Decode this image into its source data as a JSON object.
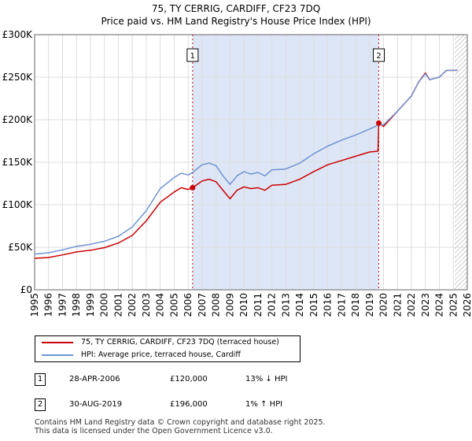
{
  "chart_data": {
    "type": "line",
    "title": "75, TY CERRIG, CARDIFF, CF23 7DQ",
    "subtitle": "Price paid vs. HM Land Registry's House Price Index (HPI)",
    "xlim": [
      1995,
      2026
    ],
    "ylim": [
      0,
      300000
    ],
    "x_ticks": [
      1995,
      1996,
      1997,
      1998,
      1999,
      2000,
      2001,
      2002,
      2003,
      2004,
      2005,
      2006,
      2007,
      2008,
      2009,
      2010,
      2011,
      2012,
      2013,
      2014,
      2015,
      2016,
      2017,
      2018,
      2019,
      2020,
      2021,
      2022,
      2023,
      2024,
      2025,
      2026
    ],
    "y_ticks": [
      {
        "value": 0,
        "label": "£0"
      },
      {
        "value": 50000,
        "label": "£50K"
      },
      {
        "value": 100000,
        "label": "£100K"
      },
      {
        "value": 150000,
        "label": "£150K"
      },
      {
        "value": 200000,
        "label": "£200K"
      },
      {
        "value": 250000,
        "label": "£250K"
      },
      {
        "value": 300000,
        "label": "£300K"
      }
    ],
    "grid": true,
    "shaded_period": [
      2006.32,
      2019.66
    ],
    "future_hatch_from": 2025.1,
    "colors": {
      "property": "#cc0000",
      "hpi": "#6f93d3",
      "shade": "#dde6f7",
      "marker_line": "#cc0000"
    },
    "series": [
      {
        "name": "75, TY CERRIG, CARDIFF, CF23 7DQ (terraced house)",
        "color": "#cc0000",
        "x": [
          1995.0,
          1996.0,
          1997.0,
          1998.0,
          1999.0,
          2000.0,
          2001.0,
          2002.0,
          2003.0,
          2004.0,
          2005.0,
          2005.5,
          2006.0,
          2006.32,
          2007.0,
          2007.5,
          2008.0,
          2008.5,
          2009.0,
          2009.5,
          2010.0,
          2010.5,
          2011.0,
          2011.5,
          2012.0,
          2013.0,
          2014.0,
          2015.0,
          2016.0,
          2017.0,
          2018.0,
          2019.0,
          2019.6,
          2019.66,
          2020.0,
          2021.0,
          2022.0,
          2022.5,
          2023.0,
          2023.3,
          2024.0,
          2024.5,
          2025.0,
          2025.3
        ],
        "y": [
          37000,
          38000,
          41000,
          44500,
          46500,
          49500,
          55000,
          64000,
          81000,
          103000,
          115000,
          120000,
          118000,
          120000,
          128000,
          130000,
          127000,
          117000,
          107000,
          117000,
          121000,
          119000,
          120000,
          117000,
          123000,
          124000,
          130000,
          139000,
          147000,
          152000,
          157000,
          162000,
          163000,
          196000,
          192000,
          210000,
          228000,
          244000,
          255000,
          247000,
          250000,
          258000,
          258000,
          258000
        ]
      },
      {
        "name": "HPI: Average price, terraced house, Cardiff",
        "color": "#6f93d3",
        "x": [
          1995.0,
          1996.0,
          1997.0,
          1998.0,
          1999.0,
          2000.0,
          2001.0,
          2002.0,
          2003.0,
          2004.0,
          2005.0,
          2005.5,
          2006.0,
          2006.32,
          2007.0,
          2007.5,
          2008.0,
          2008.5,
          2009.0,
          2009.5,
          2010.0,
          2010.5,
          2011.0,
          2011.5,
          2012.0,
          2013.0,
          2014.0,
          2015.0,
          2016.0,
          2017.0,
          2018.0,
          2019.0,
          2019.66,
          2020.0,
          2021.0,
          2022.0,
          2022.5,
          2023.0,
          2023.3,
          2024.0,
          2024.5,
          2025.0,
          2025.3
        ],
        "y": [
          42000,
          43500,
          47000,
          51000,
          53500,
          57000,
          63000,
          74000,
          93000,
          119000,
          132000,
          137000,
          135000,
          138000,
          147000,
          149000,
          146000,
          134000,
          124000,
          134000,
          139000,
          136000,
          138000,
          134000,
          141000,
          142000,
          149000,
          160000,
          169000,
          176000,
          182000,
          189000,
          194000,
          194000,
          210000,
          228000,
          244000,
          254000,
          247000,
          250000,
          258000,
          258000,
          258000
        ]
      }
    ],
    "sale_points": [
      {
        "id": "1",
        "x": 2006.32,
        "y": 120000
      },
      {
        "id": "2",
        "x": 2019.66,
        "y": 196000
      }
    ]
  },
  "legend": {
    "property_label": "75, TY CERRIG, CARDIFF, CF23 7DQ (terraced house)",
    "hpi_label": "HPI: Average price, terraced house, Cardiff"
  },
  "transactions": [
    {
      "id": "1",
      "date": "28-APR-2006",
      "price": "£120,000",
      "hpi": "13% ↓ HPI"
    },
    {
      "id": "2",
      "date": "30-AUG-2019",
      "price": "£196,000",
      "hpi": "1% ↑ HPI"
    }
  ],
  "footer": {
    "line1": "Contains HM Land Registry data © Crown copyright and database right 2025.",
    "line2": "This data is licensed under the Open Government Licence v3.0."
  }
}
